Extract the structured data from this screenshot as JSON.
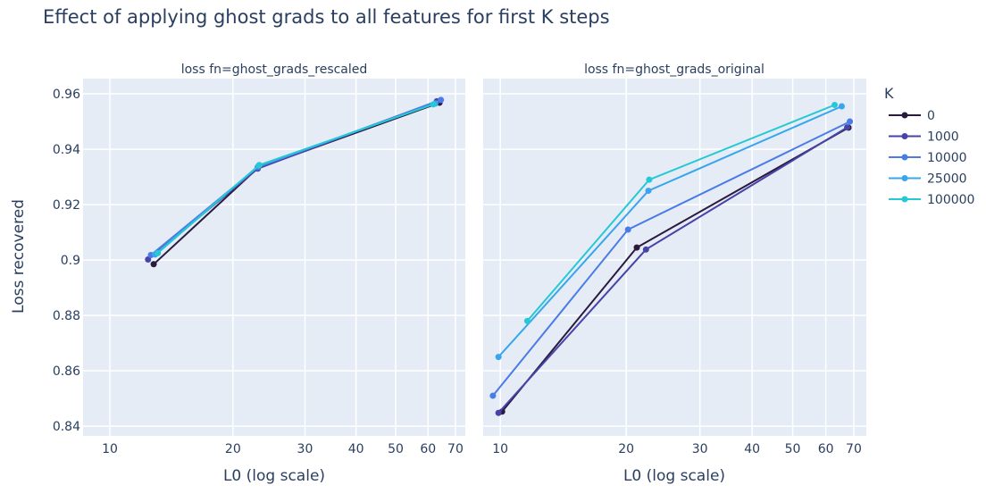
{
  "title": "Effect of applying ghost grads to all features for first K steps",
  "ylabel": "Loss recovered",
  "legend_title": "K",
  "colors": {
    "0": "#2a1a3e",
    "1000": "#4743a8",
    "10000": "#4a7be6",
    "25000": "#38a5ee",
    "100000": "#25c9d3"
  },
  "chart_data": [
    {
      "type": "line",
      "title": "loss fn=ghost_grads_rescaled",
      "xlabel": "L0 (log scale)",
      "xscale": "log",
      "xlim": [
        8.6,
        74
      ],
      "ylim": [
        0.8365,
        0.9655
      ],
      "xticks": [
        10,
        20,
        30,
        40,
        50,
        60,
        70
      ],
      "yticks": [
        0.84,
        0.86,
        0.88,
        0.9,
        0.92,
        0.94,
        0.96
      ],
      "ytick_labels": [
        "0.84",
        "0.86",
        "0.88",
        "0.9",
        "0.92",
        "0.94",
        "0.96"
      ],
      "grid": true,
      "series": [
        {
          "name": "0",
          "x": [
            12.8,
            23.0,
            64.0
          ],
          "y": [
            0.8985,
            0.9332,
            0.9568
          ]
        },
        {
          "name": "1000",
          "x": [
            12.4,
            23.0,
            63.0
          ],
          "y": [
            0.9002,
            0.933,
            0.9573
          ]
        },
        {
          "name": "10000",
          "x": [
            12.6,
            23.0,
            64.5
          ],
          "y": [
            0.9018,
            0.9335,
            0.9578
          ]
        },
        {
          "name": "25000",
          "x": [
            12.9,
            23.1,
            62.5
          ],
          "y": [
            0.902,
            0.934,
            0.9565
          ]
        },
        {
          "name": "100000",
          "x": [
            13.1,
            23.2,
            61.8
          ],
          "y": [
            0.9025,
            0.9343,
            0.9562
          ]
        }
      ]
    },
    {
      "type": "line",
      "title": "loss fn=ghost_grads_original",
      "xlabel": "L0 (log scale)",
      "xscale": "log",
      "xlim": [
        9.1,
        75
      ],
      "ylim": [
        0.8365,
        0.9655
      ],
      "xticks": [
        10,
        20,
        30,
        40,
        50,
        60,
        70
      ],
      "grid": true,
      "series": [
        {
          "name": "0",
          "x": [
            10.1,
            21.2,
            68.0
          ],
          "y": [
            0.8453,
            0.9045,
            0.9478
          ]
        },
        {
          "name": "1000",
          "x": [
            9.9,
            22.3,
            67.5
          ],
          "y": [
            0.8448,
            0.9038,
            0.9479
          ]
        },
        {
          "name": "10000",
          "x": [
            9.6,
            20.2,
            68.5
          ],
          "y": [
            0.851,
            0.911,
            0.95
          ]
        },
        {
          "name": "25000",
          "x": [
            9.9,
            22.6,
            65.5
          ],
          "y": [
            0.865,
            0.925,
            0.9555
          ]
        },
        {
          "name": "100000",
          "x": [
            11.6,
            22.7,
            63.0
          ],
          "y": [
            0.878,
            0.929,
            0.956
          ]
        }
      ]
    }
  ]
}
